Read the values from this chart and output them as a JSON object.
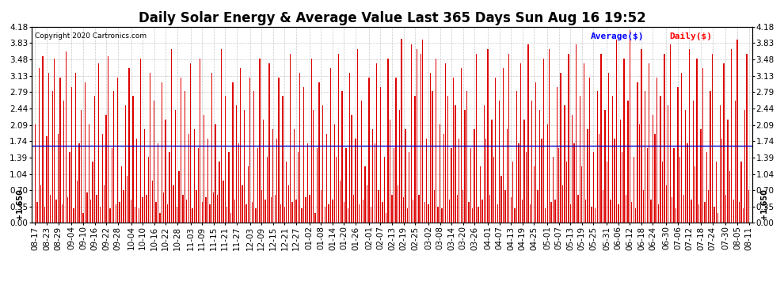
{
  "title": "Daily Solar Energy & Average Value Last 365 Days Sun Aug 16 19:52",
  "copyright": "Copyright 2020 Cartronics.com",
  "legend_avg": "Average($)",
  "legend_daily": "Daily($)",
  "bar_color": "#dd0000",
  "avg_line_color": "#0000cc",
  "avg_value": 1.65,
  "avg_label": "+1.650",
  "ylim_max": 4.18,
  "ylim_min": 0.0,
  "yticks": [
    0.0,
    0.35,
    0.7,
    1.04,
    1.39,
    1.74,
    2.09,
    2.44,
    2.79,
    3.13,
    3.48,
    3.83,
    4.18
  ],
  "background_color": "#ffffff",
  "grid_color": "#bbbbbb",
  "title_fontsize": 12,
  "tick_fontsize": 7.5,
  "xtick_labels": [
    "08-17",
    "08-23",
    "08-29",
    "09-04",
    "09-10",
    "09-16",
    "09-22",
    "09-28",
    "10-04",
    "10-10",
    "10-16",
    "10-22",
    "10-28",
    "11-03",
    "11-09",
    "11-15",
    "11-21",
    "11-27",
    "12-03",
    "12-09",
    "12-15",
    "12-21",
    "12-27",
    "01-02",
    "01-08",
    "01-14",
    "01-20",
    "01-26",
    "02-01",
    "02-07",
    "02-13",
    "02-19",
    "02-25",
    "03-02",
    "03-08",
    "03-14",
    "03-20",
    "03-26",
    "04-01",
    "04-07",
    "04-13",
    "04-19",
    "04-25",
    "05-01",
    "05-07",
    "05-13",
    "05-19",
    "05-25",
    "05-31",
    "06-06",
    "06-12",
    "06-18",
    "06-24",
    "06-30",
    "07-06",
    "07-12",
    "07-18",
    "07-24",
    "07-30",
    "08-05",
    "08-11"
  ],
  "daily_values": [
    2.1,
    0.45,
    3.3,
    0.8,
    3.55,
    0.35,
    1.85,
    3.2,
    0.6,
    2.8,
    3.5,
    0.5,
    1.9,
    3.1,
    0.4,
    2.6,
    3.65,
    0.55,
    1.5,
    2.9,
    0.3,
    3.2,
    0.9,
    1.7,
    2.4,
    0.2,
    3.0,
    0.65,
    2.1,
    0.5,
    1.3,
    2.7,
    0.6,
    3.4,
    0.35,
    1.9,
    0.8,
    2.3,
    3.55,
    0.3,
    1.6,
    2.8,
    0.4,
    3.1,
    0.45,
    1.2,
    0.7,
    2.5,
    1.0,
    3.3,
    0.5,
    2.7,
    0.35,
    1.8,
    0.3,
    3.5,
    0.55,
    2.0,
    0.6,
    1.4,
    3.2,
    0.9,
    2.6,
    0.45,
    1.7,
    0.2,
    3.0,
    0.65,
    2.2,
    0.4,
    1.5,
    3.7,
    0.8,
    2.4,
    0.35,
    1.1,
    3.1,
    0.6,
    2.8,
    0.5,
    1.9,
    3.4,
    0.3,
    2.0,
    0.7,
    1.6,
    3.5,
    0.45,
    2.3,
    0.55,
    1.8,
    0.4,
    3.2,
    0.65,
    2.1,
    0.6,
    1.3,
    3.7,
    0.9,
    2.7,
    0.35,
    1.5,
    0.2,
    3.0,
    0.5,
    2.5,
    1.7,
    3.3,
    0.8,
    2.4,
    0.4,
    1.2,
    3.1,
    0.45,
    2.8,
    0.3,
    1.6,
    3.5,
    0.7,
    2.2,
    0.5,
    1.4,
    3.4,
    0.55,
    2.0,
    0.6,
    1.8,
    3.1,
    0.4,
    2.7,
    0.35,
    1.3,
    0.8,
    3.6,
    0.45,
    2.0,
    0.5,
    1.5,
    3.2,
    0.3,
    2.9,
    0.55,
    1.7,
    0.6,
    3.5,
    2.4,
    0.2,
    1.6,
    3.0,
    0.7,
    2.5,
    0.35,
    1.9,
    0.4,
    3.3,
    0.5,
    2.1,
    1.4,
    3.6,
    0.9,
    2.8,
    0.45,
    1.6,
    0.3,
    3.2,
    2.3,
    0.6,
    1.8,
    3.7,
    0.4,
    2.6,
    0.5,
    1.2,
    0.8,
    3.1,
    0.35,
    2.0,
    1.7,
    3.4,
    0.7,
    2.9,
    0.45,
    1.4,
    0.2,
    3.5,
    2.2,
    0.6,
    1.6,
    3.1,
    0.8,
    2.4,
    3.92,
    0.55,
    2.0,
    0.3,
    1.5,
    3.8,
    0.5,
    2.7,
    3.7,
    0.6,
    3.6,
    3.9,
    0.45,
    1.8,
    0.4,
    3.2,
    2.8,
    0.7,
    3.5,
    0.35,
    2.1,
    0.3,
    1.9,
    3.4,
    2.7,
    0.5,
    1.6,
    3.1,
    2.5,
    0.6,
    1.8,
    3.3,
    0.7,
    2.4,
    2.8,
    0.45,
    1.6,
    0.3,
    2.0,
    3.6,
    0.35,
    1.2,
    0.5,
    2.5,
    1.8,
    3.7,
    0.6,
    2.2,
    1.4,
    3.1,
    0.4,
    2.6,
    1.0,
    3.3,
    0.7,
    2.0,
    3.6,
    0.55,
    1.3,
    0.3,
    2.8,
    1.7,
    3.4,
    0.5,
    2.2,
    1.5,
    3.8,
    0.4,
    2.6,
    1.2,
    3.0,
    0.7,
    2.4,
    1.8,
    3.5,
    0.3,
    2.1,
    3.7,
    0.45,
    1.4,
    0.5,
    2.9,
    1.6,
    3.2,
    0.8,
    2.5,
    1.3,
    3.6,
    0.4,
    2.3,
    1.7,
    3.8,
    0.6,
    2.7,
    1.2,
    3.4,
    0.5,
    2.0,
    3.1,
    0.35,
    1.5,
    0.3,
    2.8,
    1.9,
    3.6,
    0.7,
    2.4,
    1.3,
    3.2,
    0.5,
    2.7,
    1.8,
    3.9,
    0.4,
    2.2,
    1.5,
    3.5,
    0.6,
    2.6,
    4.1,
    0.45,
    1.4,
    0.3,
    3.0,
    2.1,
    3.7,
    0.7,
    2.8,
    1.6,
    3.4,
    0.5,
    2.3,
    1.9,
    3.1,
    0.4,
    2.7,
    1.3,
    3.6,
    0.8,
    2.5,
    3.8,
    0.55,
    1.6,
    0.3,
    2.9,
    1.4,
    3.2,
    0.6,
    2.4,
    1.7,
    3.7,
    0.5,
    2.6,
    1.2,
    3.5,
    0.4,
    2.0,
    3.3,
    0.45,
    1.5,
    0.7,
    2.8,
    3.6,
    0.35,
    1.3,
    0.2,
    2.5,
    1.8,
    3.4,
    0.6,
    2.2,
    1.1,
    3.7,
    0.5,
    2.6,
    3.9,
    0.45,
    1.3,
    0.3,
    2.4,
    3.6,
    0.7
  ]
}
